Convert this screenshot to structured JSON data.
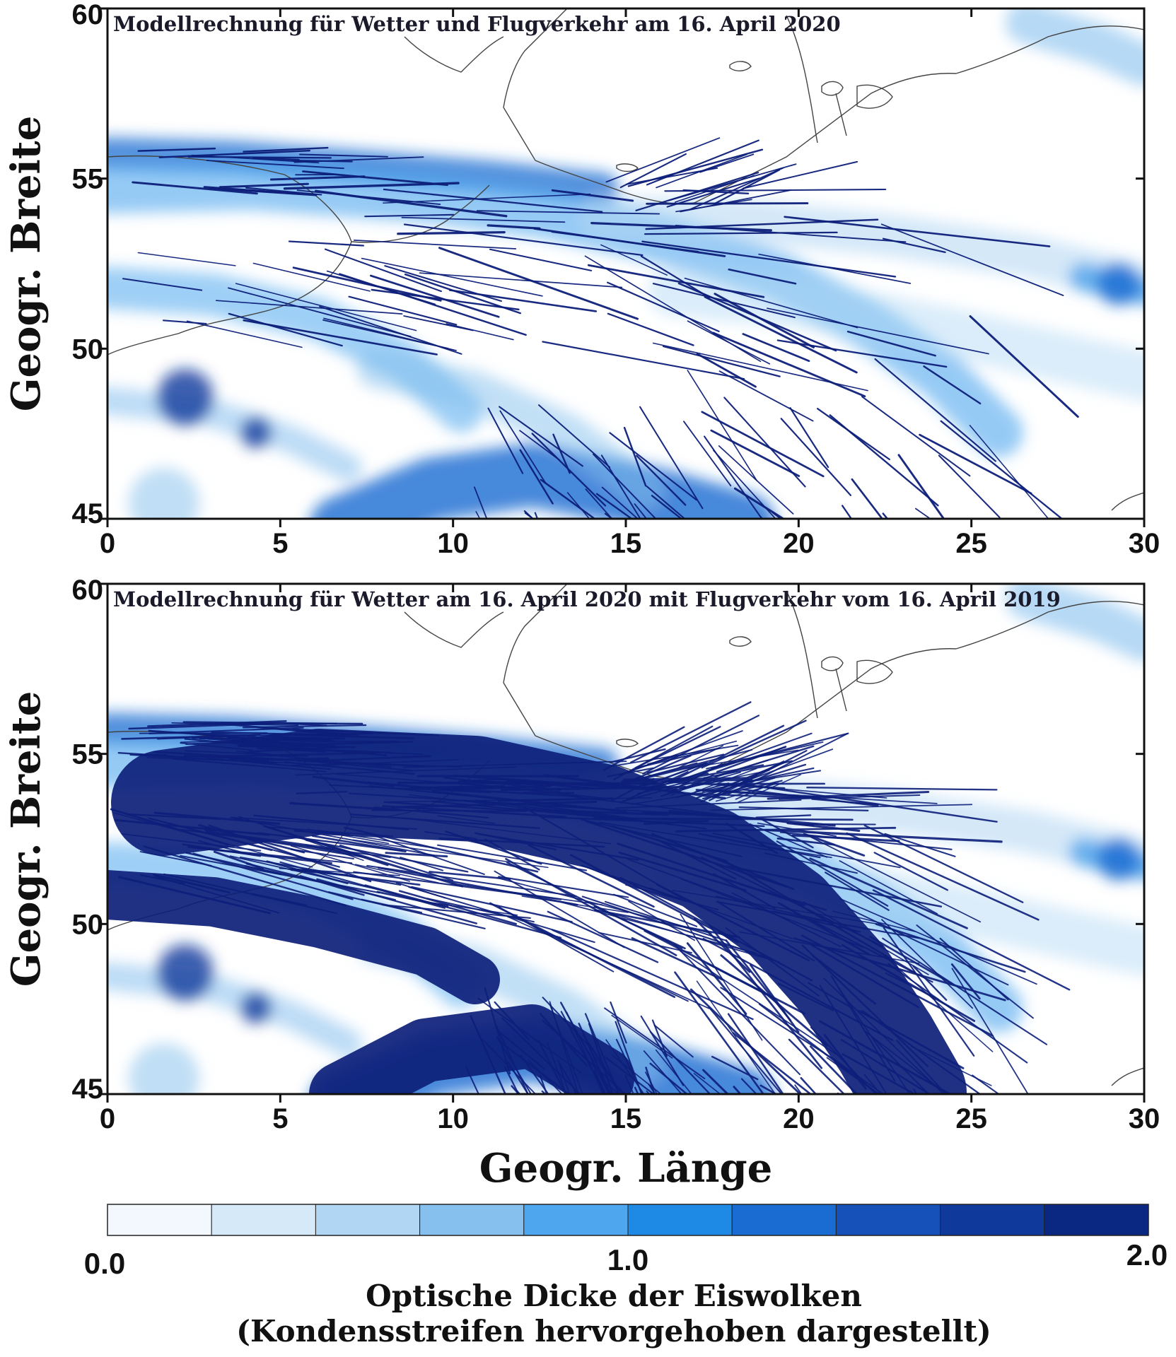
{
  "colors": {
    "scale": [
      "#f2f8fd",
      "#d6e9f8",
      "#b0d6f3",
      "#86c0ee",
      "#4ea7ee",
      "#1e8ae6",
      "#1a6cd2",
      "#1551b8",
      "#0f3a9c",
      "#0a2782"
    ],
    "track": "#0d1f7a",
    "coast": "#444444"
  },
  "chart_data": [
    {
      "type": "heatmap",
      "title": "Modellrechnung für Wetter und Flugverkehr am 16. April 2020",
      "xlabel": "",
      "ylabel": "Geogr. Breite",
      "xlim": [
        0,
        30
      ],
      "ylim": [
        45,
        60
      ],
      "xticks": [
        "0",
        "5",
        "10",
        "15",
        "20",
        "25",
        "30"
      ],
      "yticks": [
        "45",
        "50",
        "55",
        "60"
      ],
      "density": "sparse"
    },
    {
      "type": "heatmap",
      "title": "Modellrechnung für Wetter am 16. April 2020 mit Flugverkehr vom 16. April 2019",
      "xlabel": "Geogr. Länge",
      "ylabel": "Geogr. Breite",
      "xlim": [
        0,
        30
      ],
      "ylim": [
        45,
        60
      ],
      "xticks": [
        "0",
        "5",
        "10",
        "15",
        "20",
        "25",
        "30"
      ],
      "yticks": [
        "45",
        "50",
        "55",
        "60"
      ],
      "density": "dense"
    }
  ],
  "colorbar": {
    "min_label": "0.0",
    "mid_label": "1.0",
    "max_label": "2.0",
    "range": [
      0,
      2
    ],
    "segments": 10,
    "title": "Optische Dicke der Eiswolken",
    "subtitle": "(Kondensstreifen hervorgehoben dargestellt)"
  }
}
